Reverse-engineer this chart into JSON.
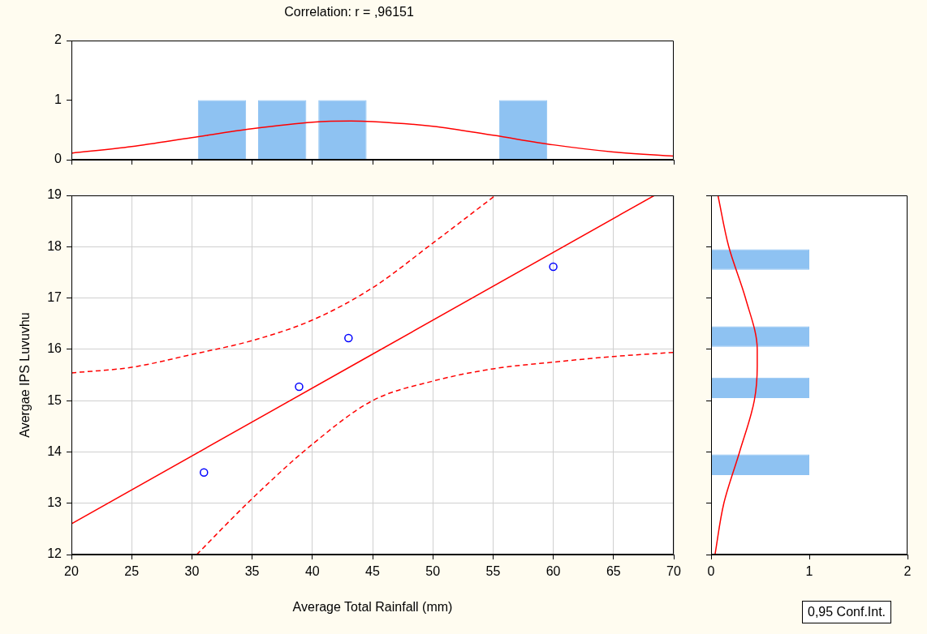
{
  "chart_data": [
    {
      "type": "histogram",
      "title": "Correlation: r = ,96151",
      "xlim": [
        20,
        70
      ],
      "xticks": [
        20,
        25,
        30,
        35,
        40,
        45,
        50,
        55,
        60,
        65,
        70
      ],
      "ylim": [
        0,
        2
      ],
      "yticks": [
        0,
        1,
        2
      ],
      "tick_labels": "y",
      "series": [
        {
          "type": "histogram",
          "color": "#8ec2f2",
          "bins": [
            30,
            35,
            40,
            45,
            50,
            55,
            60
          ],
          "values": [
            1,
            1,
            1,
            0,
            0,
            1
          ]
        },
        {
          "type": "line",
          "color": "#ff0000",
          "x": [
            20,
            25,
            30,
            35,
            40,
            43.2,
            45,
            50,
            55,
            60,
            65,
            70
          ],
          "values": [
            0.11,
            0.22,
            0.37,
            0.52,
            0.63,
            0.65,
            0.64,
            0.56,
            0.41,
            0.25,
            0.13,
            0.06
          ]
        }
      ]
    },
    {
      "type": "scatter",
      "xlabel": "Average Total Rainfall (mm)",
      "ylabel": "Avergae IPS Luvuvhu",
      "xlim": [
        20,
        70
      ],
      "xticks": [
        20,
        25,
        30,
        35,
        40,
        45,
        50,
        55,
        60,
        65,
        70
      ],
      "ylim": [
        12,
        19
      ],
      "yticks": [
        12,
        13,
        14,
        15,
        16,
        17,
        18,
        19
      ],
      "grid": true,
      "annotations": [
        "0,95 Conf.Int."
      ],
      "series": [
        {
          "type": "scatter",
          "color": "#0000ff",
          "marker": "circle",
          "x": [
            31,
            38.9,
            43,
            60
          ],
          "values": [
            13.6,
            15.27,
            16.22,
            17.61
          ]
        },
        {
          "type": "line",
          "color": "#ff0000",
          "line_style": "solid",
          "x": [
            20,
            68.4
          ],
          "values": [
            12.6,
            19
          ]
        },
        {
          "type": "line",
          "color": "#ff0000",
          "line_style": "dashed",
          "x": [
            20,
            25,
            30,
            35,
            40,
            45,
            50,
            55.2
          ],
          "values": [
            15.54,
            15.65,
            15.9,
            16.17,
            16.57,
            17.2,
            18.07,
            19
          ]
        },
        {
          "type": "line",
          "color": "#ff0000",
          "line_style": "dashed",
          "x": [
            30.4,
            35,
            40,
            45,
            50,
            55,
            60,
            65,
            70
          ],
          "values": [
            12,
            13.09,
            14.15,
            15.0,
            15.38,
            15.62,
            15.75,
            15.86,
            15.94
          ]
        }
      ]
    },
    {
      "type": "histogram",
      "orientation": "horizontal",
      "xlim": [
        0,
        2
      ],
      "xticks": [
        0,
        1,
        2
      ],
      "ylim": [
        12,
        19
      ],
      "yticks": [
        12,
        13,
        14,
        15,
        16,
        17,
        18,
        19
      ],
      "tick_labels": "x",
      "series": [
        {
          "type": "histogram",
          "color": "#8ec2f2",
          "bins": [
            13.5,
            14,
            14.5,
            15,
            15.5,
            16,
            16.5,
            17,
            17.5,
            18
          ],
          "values": [
            1,
            0,
            0,
            1,
            0,
            1,
            0,
            0,
            1
          ]
        },
        {
          "type": "line",
          "color": "#ff0000",
          "x": [
            12,
            13,
            14,
            15,
            15.675,
            16,
            17,
            18,
            19
          ],
          "values": [
            0.04,
            0.13,
            0.29,
            0.44,
            0.47,
            0.47,
            0.35,
            0.18,
            0.07
          ]
        }
      ]
    }
  ]
}
